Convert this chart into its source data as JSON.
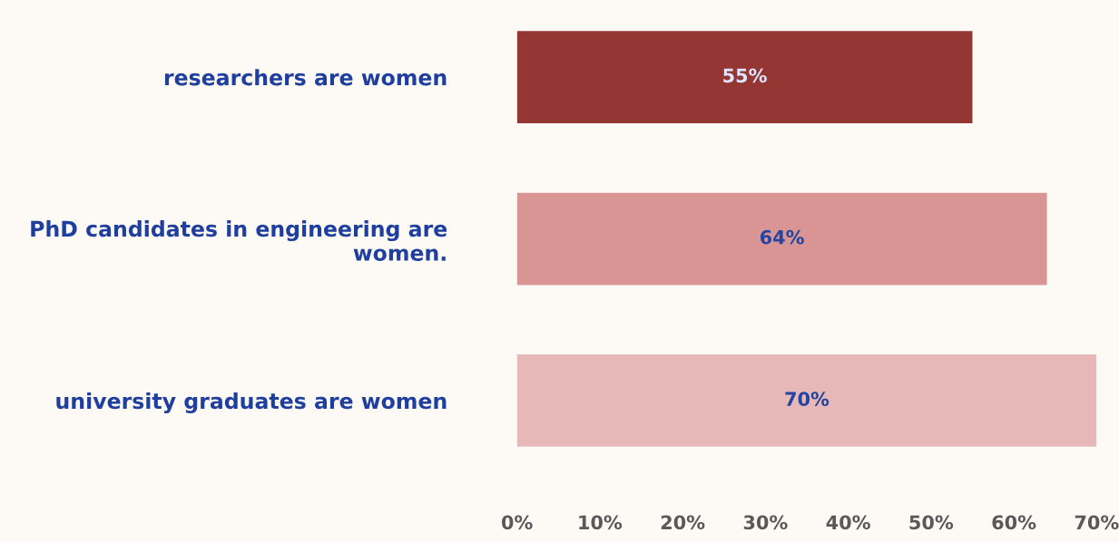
{
  "chart_data": {
    "type": "bar",
    "orientation": "horizontal",
    "categories": [
      "researchers are women",
      "PhD candidates in engineering are\nwomen.",
      "university graduates are women"
    ],
    "values": [
      55,
      64,
      70
    ],
    "colors": [
      "#943634",
      "#d99594",
      "#e6b9b8"
    ],
    "value_labels": [
      "55%",
      "64%",
      "70%"
    ],
    "xlim": [
      0,
      70
    ],
    "xticks": [
      {
        "value": 0,
        "label": "0%"
      },
      {
        "value": 10,
        "label": "10%"
      },
      {
        "value": 20,
        "label": "20%"
      },
      {
        "value": 30,
        "label": "30%"
      },
      {
        "value": 40,
        "label": "40%"
      },
      {
        "value": 50,
        "label": "50%"
      },
      {
        "value": 60,
        "label": "60%"
      },
      {
        "value": 70,
        "label": "70%"
      }
    ],
    "grid": false,
    "legend": false
  }
}
